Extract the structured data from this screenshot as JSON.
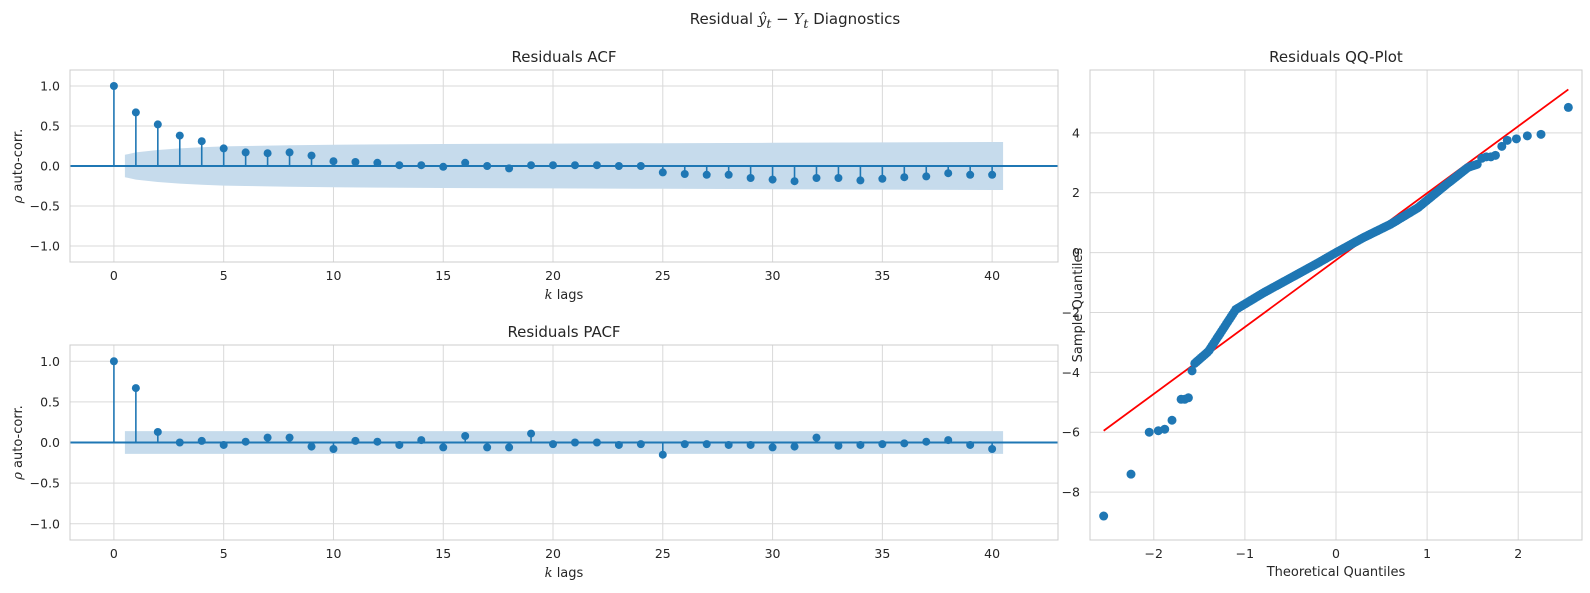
{
  "figure": {
    "suptitle_pre": "Residual ",
    "suptitle_math_a": "ŷ",
    "suptitle_sub_a": "t",
    "suptitle_minus": " − ",
    "suptitle_math_b": "Y",
    "suptitle_sub_b": "t",
    "suptitle_post": " Diagnostics"
  },
  "colors": {
    "marker": "#1f77b4",
    "band": "#c6dbec",
    "grid": "#d9d9d9",
    "frame": "#cccccc",
    "qq_line": "#ff0000"
  },
  "chart_data": [
    {
      "type": "scatter",
      "kind": "stem",
      "title": "Residuals ACF",
      "xlabel_math": "k",
      "xlabel_text": " lags",
      "ylabel_math": "ρ",
      "ylabel_text": " auto-corr.",
      "xlim": [
        -2,
        43
      ],
      "ylim": [
        -1.2,
        1.2
      ],
      "xticks": [
        0,
        5,
        10,
        15,
        20,
        25,
        30,
        35,
        40
      ],
      "yticks": [
        -1.0,
        -0.5,
        0.0,
        0.5,
        1.0
      ],
      "ytick_labels": [
        "−1.0",
        "−0.5",
        "0.0",
        "0.5",
        "1.0"
      ],
      "grid": true,
      "lags": [
        0,
        1,
        2,
        3,
        4,
        5,
        6,
        7,
        8,
        9,
        10,
        11,
        12,
        13,
        14,
        15,
        16,
        17,
        18,
        19,
        20,
        21,
        22,
        23,
        24,
        25,
        26,
        27,
        28,
        29,
        30,
        31,
        32,
        33,
        34,
        35,
        36,
        37,
        38,
        39,
        40
      ],
      "values": [
        1.0,
        0.67,
        0.52,
        0.38,
        0.31,
        0.22,
        0.17,
        0.16,
        0.17,
        0.13,
        0.06,
        0.05,
        0.04,
        0.01,
        0.01,
        -0.01,
        0.04,
        0.0,
        -0.03,
        0.01,
        0.01,
        0.01,
        0.01,
        0.0,
        0.0,
        -0.08,
        -0.1,
        -0.11,
        -0.11,
        -0.15,
        -0.17,
        -0.19,
        -0.15,
        -0.15,
        -0.18,
        -0.16,
        -0.14,
        -0.13,
        -0.09,
        -0.11,
        -0.11
      ],
      "confint_lags": [
        0.5,
        1,
        2,
        3,
        4,
        5,
        6,
        7,
        8,
        10,
        12,
        15,
        20,
        25,
        30,
        35,
        40,
        40.5
      ],
      "confint_upper": [
        0.14,
        0.17,
        0.2,
        0.22,
        0.235,
        0.245,
        0.25,
        0.255,
        0.26,
        0.265,
        0.27,
        0.275,
        0.28,
        0.285,
        0.29,
        0.295,
        0.3,
        0.3
      ]
    },
    {
      "type": "scatter",
      "kind": "stem",
      "title": "Residuals PACF",
      "xlabel_math": "k",
      "xlabel_text": " lags",
      "ylabel_math": "ρ",
      "ylabel_text": " auto-corr.",
      "xlim": [
        -2,
        43
      ],
      "ylim": [
        -1.2,
        1.2
      ],
      "xticks": [
        0,
        5,
        10,
        15,
        20,
        25,
        30,
        35,
        40
      ],
      "yticks": [
        -1.0,
        -0.5,
        0.0,
        0.5,
        1.0
      ],
      "ytick_labels": [
        "−1.0",
        "−0.5",
        "0.0",
        "0.5",
        "1.0"
      ],
      "grid": true,
      "lags": [
        0,
        1,
        2,
        3,
        4,
        5,
        6,
        7,
        8,
        9,
        10,
        11,
        12,
        13,
        14,
        15,
        16,
        17,
        18,
        19,
        20,
        21,
        22,
        23,
        24,
        25,
        26,
        27,
        28,
        29,
        30,
        31,
        32,
        33,
        34,
        35,
        36,
        37,
        38,
        39,
        40
      ],
      "values": [
        1.0,
        0.67,
        0.13,
        0.0,
        0.02,
        -0.03,
        0.01,
        0.06,
        0.06,
        -0.05,
        -0.08,
        0.02,
        0.01,
        -0.03,
        0.03,
        -0.06,
        0.08,
        -0.06,
        -0.06,
        0.11,
        -0.02,
        0.0,
        0.0,
        -0.03,
        -0.02,
        -0.15,
        -0.02,
        -0.02,
        -0.03,
        -0.03,
        -0.06,
        -0.05,
        0.06,
        -0.04,
        -0.03,
        -0.02,
        -0.01,
        0.01,
        0.03,
        -0.03,
        -0.08
      ],
      "confint_lags": [
        0.5,
        40.5
      ],
      "confint_upper": [
        0.14,
        0.14
      ]
    },
    {
      "type": "scatter",
      "title": "Residuals QQ-Plot",
      "xlabel": "Theoretical Quantiles",
      "ylabel": "Sample Quantiles",
      "xlim": [
        -2.7,
        2.7
      ],
      "ylim": [
        -9.6,
        6.1
      ],
      "xticks": [
        -2,
        -1,
        0,
        1,
        2
      ],
      "xtick_labels": [
        "−2",
        "−1",
        "0",
        "1",
        "2"
      ],
      "yticks": [
        -8,
        -6,
        -4,
        -2,
        0,
        2,
        4
      ],
      "ytick_labels": [
        "−8",
        "−6",
        "−4",
        "−2",
        "0",
        "2",
        "4"
      ],
      "grid": true,
      "reference_line": {
        "x": [
          -2.55,
          2.55
        ],
        "y": [
          -5.95,
          5.45
        ]
      },
      "outliers_x": [
        -2.55,
        -2.25,
        -2.05,
        -1.95,
        -1.88,
        -1.8,
        -1.7,
        -1.66,
        -1.62,
        -1.58
      ],
      "outliers_y": [
        -8.8,
        -7.4,
        -6.0,
        -5.95,
        -5.9,
        -5.6,
        -4.9,
        -4.9,
        -4.85,
        -3.95
      ],
      "tail_x": [
        1.6,
        1.65,
        1.7,
        1.75,
        1.82,
        1.88,
        1.98,
        2.1,
        2.25,
        2.55
      ],
      "tail_y": [
        3.15,
        3.2,
        3.2,
        3.25,
        3.55,
        3.75,
        3.8,
        3.9,
        3.95,
        4.85
      ],
      "curve_knots_x": [
        -1.55,
        -1.4,
        -1.25,
        -1.1,
        -0.8,
        -0.5,
        -0.2,
        0.0,
        0.3,
        0.6,
        0.9,
        1.2,
        1.45,
        1.55
      ],
      "curve_knots_y": [
        -3.7,
        -3.3,
        -2.6,
        -1.9,
        -1.35,
        -0.85,
        -0.35,
        0.0,
        0.5,
        0.95,
        1.5,
        2.25,
        2.85,
        2.95
      ],
      "n_curve_points": 180
    }
  ]
}
